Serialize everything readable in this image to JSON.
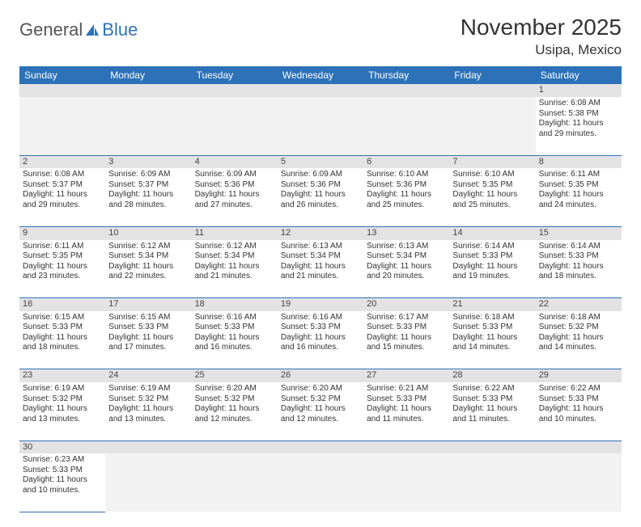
{
  "logo": {
    "part1": "General",
    "part2": "Blue"
  },
  "title": "November 2025",
  "location": "Usipa, Mexico",
  "colors": {
    "header_bg": "#2d72b8",
    "header_fg": "#ffffff",
    "daynum_bg": "#e3e3e3",
    "border": "#2d72b8",
    "text": "#333333"
  },
  "weekdays": [
    "Sunday",
    "Monday",
    "Tuesday",
    "Wednesday",
    "Thursday",
    "Friday",
    "Saturday"
  ],
  "weeks": [
    [
      null,
      null,
      null,
      null,
      null,
      null,
      {
        "n": "1",
        "sr": "Sunrise: 6:08 AM",
        "ss": "Sunset: 5:38 PM",
        "d1": "Daylight: 11 hours",
        "d2": "and 29 minutes."
      }
    ],
    [
      {
        "n": "2",
        "sr": "Sunrise: 6:08 AM",
        "ss": "Sunset: 5:37 PM",
        "d1": "Daylight: 11 hours",
        "d2": "and 29 minutes."
      },
      {
        "n": "3",
        "sr": "Sunrise: 6:09 AM",
        "ss": "Sunset: 5:37 PM",
        "d1": "Daylight: 11 hours",
        "d2": "and 28 minutes."
      },
      {
        "n": "4",
        "sr": "Sunrise: 6:09 AM",
        "ss": "Sunset: 5:36 PM",
        "d1": "Daylight: 11 hours",
        "d2": "and 27 minutes."
      },
      {
        "n": "5",
        "sr": "Sunrise: 6:09 AM",
        "ss": "Sunset: 5:36 PM",
        "d1": "Daylight: 11 hours",
        "d2": "and 26 minutes."
      },
      {
        "n": "6",
        "sr": "Sunrise: 6:10 AM",
        "ss": "Sunset: 5:36 PM",
        "d1": "Daylight: 11 hours",
        "d2": "and 25 minutes."
      },
      {
        "n": "7",
        "sr": "Sunrise: 6:10 AM",
        "ss": "Sunset: 5:35 PM",
        "d1": "Daylight: 11 hours",
        "d2": "and 25 minutes."
      },
      {
        "n": "8",
        "sr": "Sunrise: 6:11 AM",
        "ss": "Sunset: 5:35 PM",
        "d1": "Daylight: 11 hours",
        "d2": "and 24 minutes."
      }
    ],
    [
      {
        "n": "9",
        "sr": "Sunrise: 6:11 AM",
        "ss": "Sunset: 5:35 PM",
        "d1": "Daylight: 11 hours",
        "d2": "and 23 minutes."
      },
      {
        "n": "10",
        "sr": "Sunrise: 6:12 AM",
        "ss": "Sunset: 5:34 PM",
        "d1": "Daylight: 11 hours",
        "d2": "and 22 minutes."
      },
      {
        "n": "11",
        "sr": "Sunrise: 6:12 AM",
        "ss": "Sunset: 5:34 PM",
        "d1": "Daylight: 11 hours",
        "d2": "and 21 minutes."
      },
      {
        "n": "12",
        "sr": "Sunrise: 6:13 AM",
        "ss": "Sunset: 5:34 PM",
        "d1": "Daylight: 11 hours",
        "d2": "and 21 minutes."
      },
      {
        "n": "13",
        "sr": "Sunrise: 6:13 AM",
        "ss": "Sunset: 5:34 PM",
        "d1": "Daylight: 11 hours",
        "d2": "and 20 minutes."
      },
      {
        "n": "14",
        "sr": "Sunrise: 6:14 AM",
        "ss": "Sunset: 5:33 PM",
        "d1": "Daylight: 11 hours",
        "d2": "and 19 minutes."
      },
      {
        "n": "15",
        "sr": "Sunrise: 6:14 AM",
        "ss": "Sunset: 5:33 PM",
        "d1": "Daylight: 11 hours",
        "d2": "and 18 minutes."
      }
    ],
    [
      {
        "n": "16",
        "sr": "Sunrise: 6:15 AM",
        "ss": "Sunset: 5:33 PM",
        "d1": "Daylight: 11 hours",
        "d2": "and 18 minutes."
      },
      {
        "n": "17",
        "sr": "Sunrise: 6:15 AM",
        "ss": "Sunset: 5:33 PM",
        "d1": "Daylight: 11 hours",
        "d2": "and 17 minutes."
      },
      {
        "n": "18",
        "sr": "Sunrise: 6:16 AM",
        "ss": "Sunset: 5:33 PM",
        "d1": "Daylight: 11 hours",
        "d2": "and 16 minutes."
      },
      {
        "n": "19",
        "sr": "Sunrise: 6:16 AM",
        "ss": "Sunset: 5:33 PM",
        "d1": "Daylight: 11 hours",
        "d2": "and 16 minutes."
      },
      {
        "n": "20",
        "sr": "Sunrise: 6:17 AM",
        "ss": "Sunset: 5:33 PM",
        "d1": "Daylight: 11 hours",
        "d2": "and 15 minutes."
      },
      {
        "n": "21",
        "sr": "Sunrise: 6:18 AM",
        "ss": "Sunset: 5:33 PM",
        "d1": "Daylight: 11 hours",
        "d2": "and 14 minutes."
      },
      {
        "n": "22",
        "sr": "Sunrise: 6:18 AM",
        "ss": "Sunset: 5:32 PM",
        "d1": "Daylight: 11 hours",
        "d2": "and 14 minutes."
      }
    ],
    [
      {
        "n": "23",
        "sr": "Sunrise: 6:19 AM",
        "ss": "Sunset: 5:32 PM",
        "d1": "Daylight: 11 hours",
        "d2": "and 13 minutes."
      },
      {
        "n": "24",
        "sr": "Sunrise: 6:19 AM",
        "ss": "Sunset: 5:32 PM",
        "d1": "Daylight: 11 hours",
        "d2": "and 13 minutes."
      },
      {
        "n": "25",
        "sr": "Sunrise: 6:20 AM",
        "ss": "Sunset: 5:32 PM",
        "d1": "Daylight: 11 hours",
        "d2": "and 12 minutes."
      },
      {
        "n": "26",
        "sr": "Sunrise: 6:20 AM",
        "ss": "Sunset: 5:32 PM",
        "d1": "Daylight: 11 hours",
        "d2": "and 12 minutes."
      },
      {
        "n": "27",
        "sr": "Sunrise: 6:21 AM",
        "ss": "Sunset: 5:33 PM",
        "d1": "Daylight: 11 hours",
        "d2": "and 11 minutes."
      },
      {
        "n": "28",
        "sr": "Sunrise: 6:22 AM",
        "ss": "Sunset: 5:33 PM",
        "d1": "Daylight: 11 hours",
        "d2": "and 11 minutes."
      },
      {
        "n": "29",
        "sr": "Sunrise: 6:22 AM",
        "ss": "Sunset: 5:33 PM",
        "d1": "Daylight: 11 hours",
        "d2": "and 10 minutes."
      }
    ],
    [
      {
        "n": "30",
        "sr": "Sunrise: 6:23 AM",
        "ss": "Sunset: 5:33 PM",
        "d1": "Daylight: 11 hours",
        "d2": "and 10 minutes."
      },
      null,
      null,
      null,
      null,
      null,
      null
    ]
  ]
}
